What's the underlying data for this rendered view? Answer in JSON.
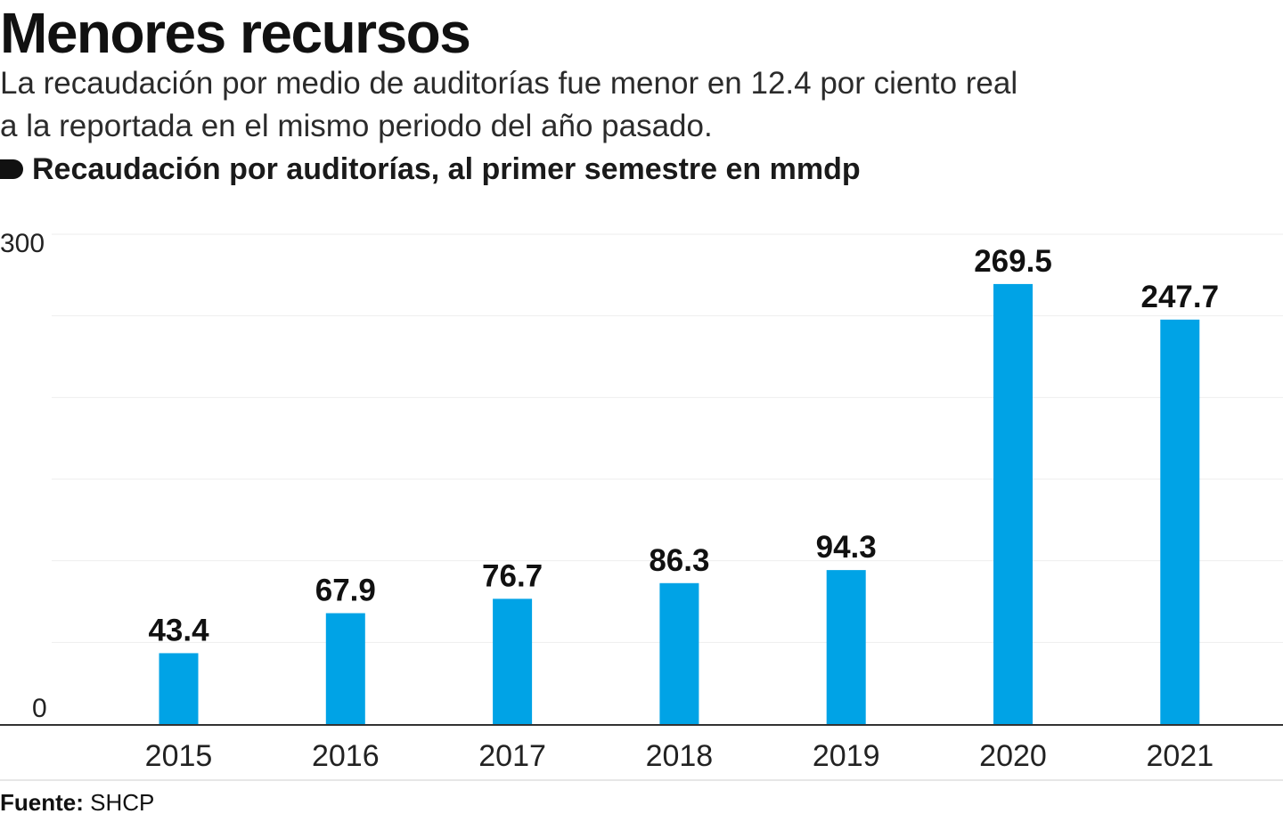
{
  "title": "Menores recursos",
  "subtitle": [
    "La recaudación por medio de auditorías fue menor en 12.4 por ciento real",
    "a la reportada en el mismo periodo del año pasado."
  ],
  "chart_heading": "Recaudación por auditorías, al primer semestre en mmdp",
  "source": {
    "label": "Fuente:",
    "value": "SHCP"
  },
  "colors": {
    "bar": "#00a3e6",
    "gridline": "#eeeeee",
    "axis": "#333333",
    "text": "#111111"
  },
  "chart_data": {
    "type": "bar",
    "categories": [
      "2015",
      "2016",
      "2017",
      "2018",
      "2019",
      "2020",
      "2021"
    ],
    "values": [
      43.4,
      67.9,
      76.7,
      86.3,
      94.3,
      269.5,
      247.7
    ],
    "data_labels": [
      "43.4",
      "67.9",
      "76.7",
      "86.3",
      "94.3",
      "269.5",
      "247.7"
    ],
    "title": "Recaudación por auditorías, al primer semestre en mmdp",
    "xlabel": "",
    "ylabel": "",
    "ylim": [
      0,
      300
    ],
    "y_tick_labels": [
      "0",
      "300"
    ],
    "y_gridlines": [
      50,
      100,
      150,
      200,
      250,
      300
    ],
    "grid": true,
    "legend": "none"
  }
}
